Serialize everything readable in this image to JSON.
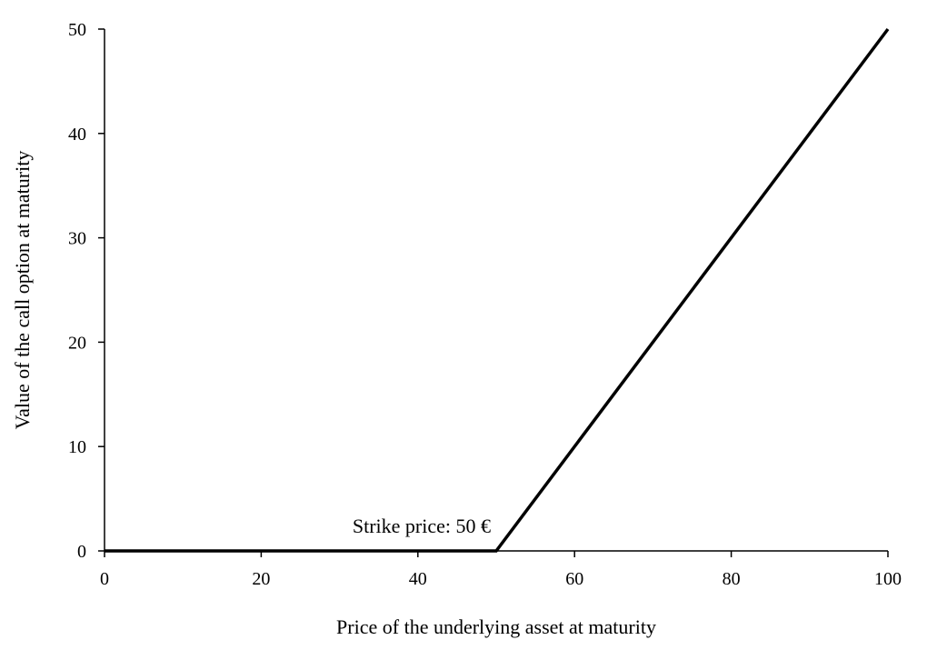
{
  "chart_data": {
    "type": "line",
    "title": "",
    "xlabel": "Price of the underlying asset at maturity",
    "ylabel": "Value of the call option at maturity",
    "xlim": [
      0,
      100
    ],
    "ylim": [
      0,
      50
    ],
    "x_ticks": [
      0,
      20,
      40,
      60,
      80,
      100
    ],
    "y_ticks": [
      0,
      10,
      20,
      30,
      40,
      50
    ],
    "grid": false,
    "legend": "none",
    "series": [
      {
        "x": [
          0,
          50,
          100
        ],
        "y": [
          0,
          0,
          50
        ],
        "color": "#000000"
      }
    ],
    "annotations": [
      {
        "text": "Strike price:  50 €",
        "x": 50,
        "y": 0
      }
    ]
  }
}
